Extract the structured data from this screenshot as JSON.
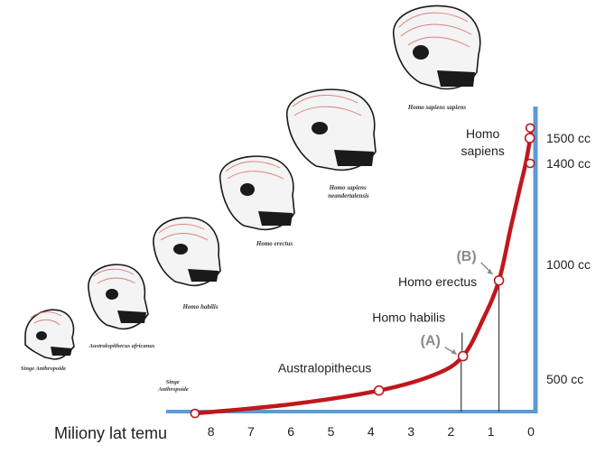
{
  "chart_data": {
    "type": "line",
    "xlabel": "Miliony lat temu",
    "x_ticks": [
      "8",
      "7",
      "6",
      "5",
      "4",
      "3",
      "2",
      "1",
      "0"
    ],
    "y_ticks": [
      "500 cc",
      "1000 cc",
      "1400 cc",
      "1500 cc"
    ],
    "y_tick_values": [
      500,
      1000,
      1400,
      1500
    ],
    "xlim": [
      8.6,
      0
    ],
    "ylim": [
      200,
      1600
    ],
    "series": [
      {
        "color": "#c0171d",
        "points": [
          {
            "x": 8.4,
            "y": 350
          },
          {
            "x": 6.0,
            "y": 390
          },
          {
            "x": 3.8,
            "y": 450
          },
          {
            "x": 2.4,
            "y": 520
          },
          {
            "x": 1.7,
            "y": 600
          },
          {
            "x": 1.2,
            "y": 760
          },
          {
            "x": 0.8,
            "y": 930
          },
          {
            "x": 0.5,
            "y": 1150
          },
          {
            "x": 0.25,
            "y": 1320
          },
          {
            "x": 0.13,
            "y": 1400
          },
          {
            "x": 0.05,
            "y": 1470
          },
          {
            "x": 0.0,
            "y": 1520
          }
        ]
      }
    ],
    "annotated_points": [
      {
        "label": "Australopithecus",
        "x": 3.8,
        "y": 450
      },
      {
        "label": "Homo habilis",
        "x": 1.7,
        "y": 600
      },
      {
        "label": "Homo erectus",
        "x": 0.8,
        "y": 930
      },
      {
        "label": "Homo sapiens",
        "x": 0.03,
        "y": 1500
      }
    ],
    "axis_markers": [
      {
        "label": "(A)",
        "x": 1.7
      },
      {
        "label": "(B)",
        "x": 0.8
      }
    ],
    "start_label": "Singe Anthropoide"
  },
  "skull_captions": [
    "Singe Anthropoide",
    "Australopithecus africanus",
    "Homo habilis",
    "Homo erectus",
    "Homo sapiens neandertalensis",
    "Homo sapiens sapiens"
  ],
  "colors": {
    "curve": "#c0171d",
    "axis": "#5b9bd5",
    "marker": "#8a8a8a",
    "brain": "#d46a6a"
  }
}
